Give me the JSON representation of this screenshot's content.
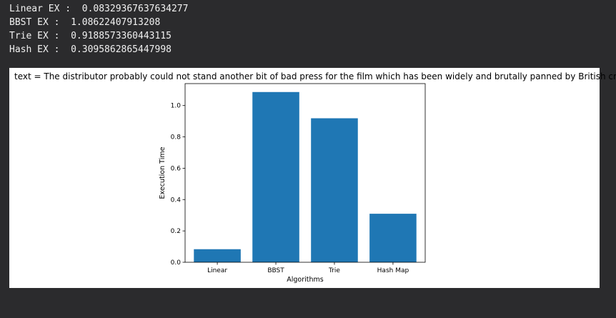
{
  "console": {
    "lines": [
      "Linear EX :  0.08329367637634277",
      "BBST EX :  1.08622407913208",
      "Trie EX :  0.9188573360443115",
      "Hash EX :  0.3095862865447998"
    ]
  },
  "chart_data": {
    "type": "bar",
    "title": "text = The distributor probably could not stand another bit of bad press for the film which has been widely and brutally panned by British critics",
    "xlabel": "Algorithms",
    "ylabel": "Execution Time",
    "categories": [
      "Linear",
      "BBST",
      "Trie",
      "Hash Map"
    ],
    "values": [
      0.08329367637634277,
      1.08622407913208,
      0.9188573360443115,
      0.3095862865447998
    ],
    "ylim": [
      0,
      1.14
    ],
    "yticks": [
      0.0,
      0.2,
      0.4,
      0.6,
      0.8,
      1.0
    ],
    "ytick_labels": [
      "0.0",
      "0.2",
      "0.4",
      "0.6",
      "0.8",
      "1.0"
    ],
    "bar_color": "#1f77b4",
    "grid": false,
    "legend": "none"
  }
}
